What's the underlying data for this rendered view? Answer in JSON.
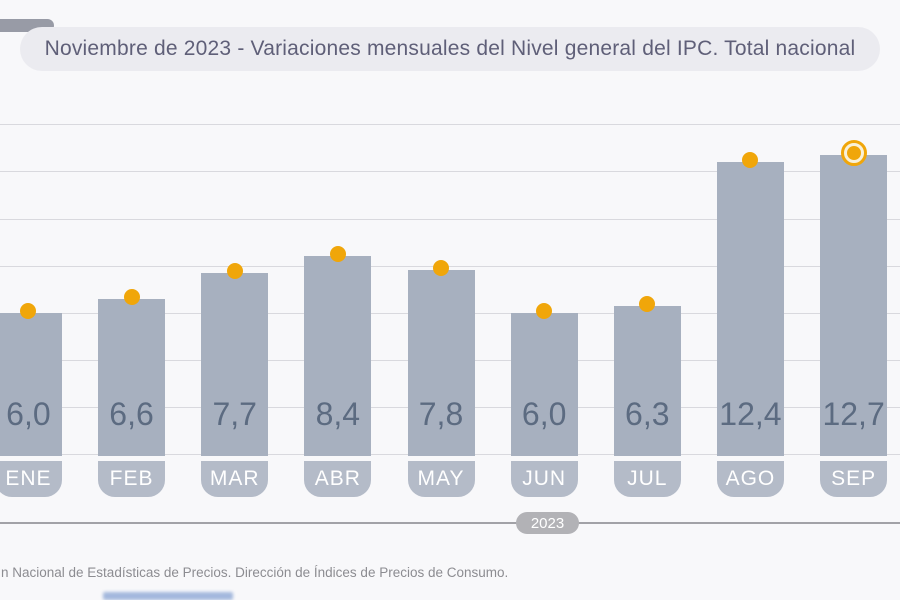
{
  "header": {
    "title": "Noviembre de 2023 - Variaciones mensuales del Nivel general del IPC. Total nacional"
  },
  "chart_data": {
    "type": "bar",
    "title": "Noviembre de 2023 - Variaciones mensuales del Nivel general del IPC. Total nacional",
    "categories": [
      "ENE",
      "FEB",
      "MAR",
      "ABR",
      "MAY",
      "JUN",
      "JUL",
      "AGO",
      "SEP"
    ],
    "values": [
      6.0,
      6.6,
      7.7,
      8.4,
      7.8,
      6.0,
      6.3,
      12.4,
      12.7
    ],
    "value_labels": [
      "6,0",
      "6,6",
      "7,7",
      "8,4",
      "7,8",
      "6,0",
      "6,3",
      "12,4",
      "12,7"
    ],
    "xlabel_year": "2023",
    "ylabel": "",
    "ylim": [
      0,
      14
    ],
    "gridline_step": 2,
    "grid": true,
    "legend": "none",
    "highlighted_index": 8,
    "colors": {
      "bar": "#a7b0bf",
      "badge": "#b4bbc8",
      "dot": "#f0a60a",
      "value_text": "#5c6b81",
      "grid": "#d9d9de",
      "month_text": "#ffffff"
    }
  },
  "axis": {
    "year_label": "2023"
  },
  "footer": {
    "source_text": "n Nacional de Estadísticas de Precios. Dirección de Índices de Precios de Consumo."
  }
}
